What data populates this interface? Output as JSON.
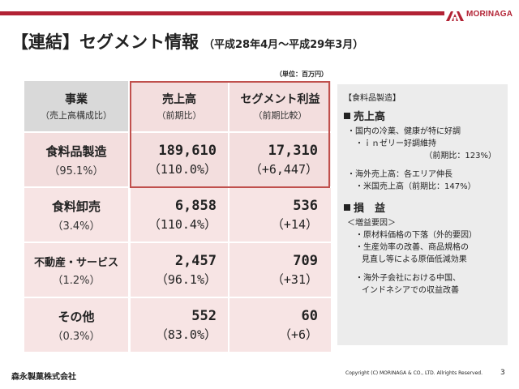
{
  "header": {
    "brand": "MORINAGA",
    "title": "【連結】セグメント情報",
    "period": "（平成28年4月～平成29年3月）",
    "unit": "（単位：百万円）"
  },
  "table": {
    "columns": [
      {
        "title": "事業",
        "sub": "（売上高構成比）"
      },
      {
        "title": "売上高",
        "sub": "（前期比）"
      },
      {
        "title": "セグメント利益",
        "sub": "（前期比較）"
      }
    ],
    "rows": [
      {
        "name": "食料品製造",
        "ratio": "（95.1%）",
        "sales": "189,610",
        "sales_change": "（110.0%）",
        "profit": "17,310",
        "profit_change": "（+6,447）"
      },
      {
        "name": "食料卸売",
        "ratio": "（3.4%）",
        "sales": "6,858",
        "sales_change": "（110.4%）",
        "profit": "536",
        "profit_change": "（+14）"
      },
      {
        "name": "不動産・サービス",
        "ratio": "（1.2%）",
        "sales": "2,457",
        "sales_change": "（96.1%）",
        "profit": "709",
        "profit_change": "（+31）"
      },
      {
        "name": "その他",
        "ratio": "（0.3%）",
        "sales": "552",
        "sales_change": "（83.0%）",
        "profit": "60",
        "profit_change": "（+6）"
      }
    ]
  },
  "side": {
    "tag": "【食料品製造】",
    "sales_head": "売上高",
    "sales_lines": [
      "・国内の冷菓、健康が特に好調",
      "・ｉｎゼリー好調維持",
      "（前期比：123%）",
      "・海外売上高：各エリア伸長",
      "・米国売上高（前期比：147%）"
    ],
    "profit_head": "損　益",
    "profit_lines": [
      "＜増益要因＞",
      "・原材料価格の下落（外的要因）",
      "・生産効率の改善、商品規格の",
      "見直し等による原価低減効果",
      "・海外子会社における中国、",
      "インドネシアでの収益改善"
    ]
  },
  "footer": {
    "company": "森永製菓株式会社",
    "copyright": "Copyright (C) MORINAGA & CO., LTD. Allrights Reserved.",
    "page": "3"
  },
  "colors": {
    "accent": "#b22234",
    "highlight_border": "#c0504d",
    "header_gray": "#d9d9d9",
    "row_pink": "#f3dede",
    "side_bg": "#ececec"
  }
}
